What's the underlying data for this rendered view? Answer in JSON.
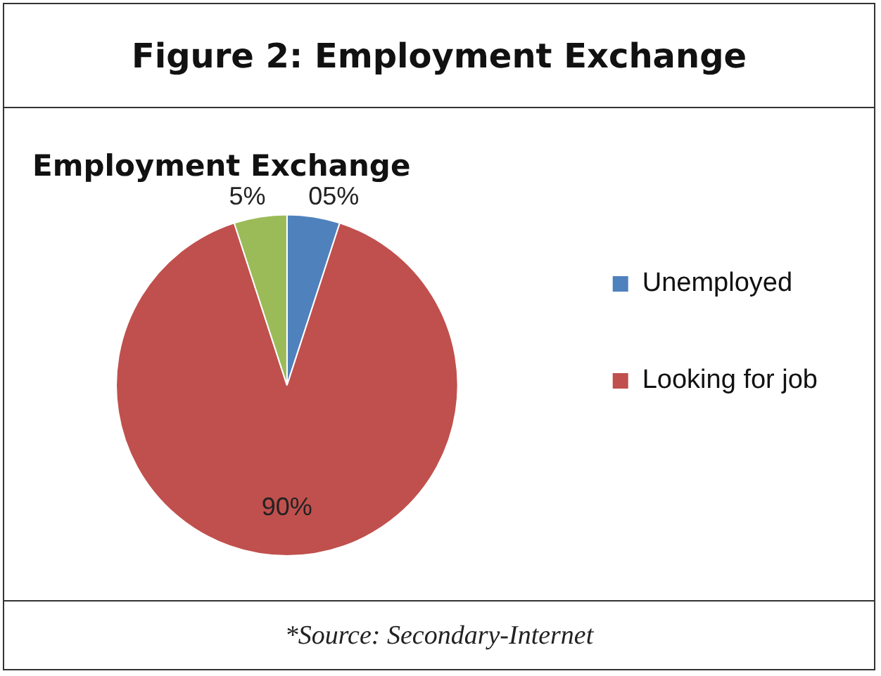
{
  "chart_data": {
    "type": "pie",
    "title": "Figure 2: Employment Exchange",
    "subtitle": "Employment Exchange",
    "categories": [
      "Unemployed",
      "Looking for job",
      null
    ],
    "values": [
      5,
      90,
      5
    ],
    "colors": [
      "#4f81bd",
      "#c0504d",
      "#9bbb59"
    ],
    "value_labels": [
      "05%",
      "90%",
      "5%"
    ],
    "legend": "right",
    "annotations": [
      "*Source: Secondary-Internet"
    ]
  }
}
